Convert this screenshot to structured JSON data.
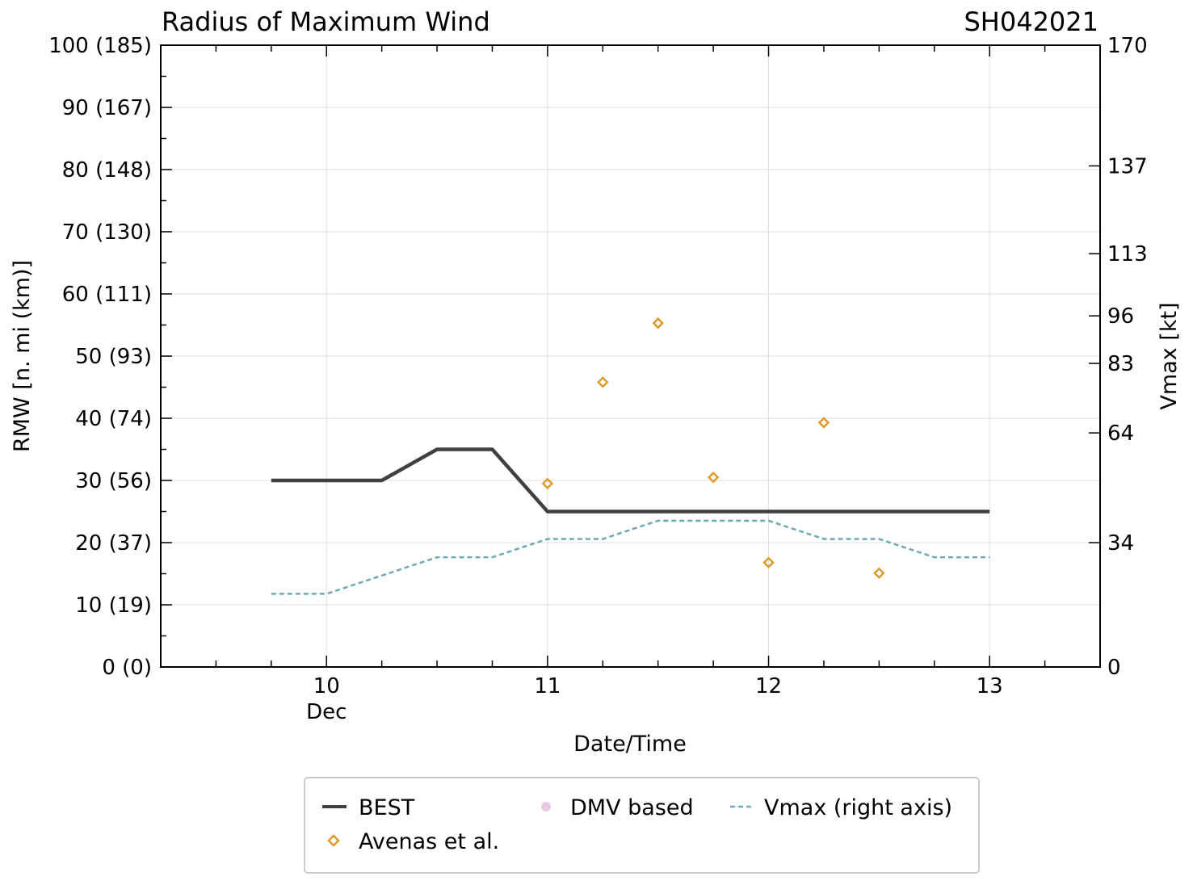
{
  "chart_data": {
    "type": "line",
    "title": "Radius of Maximum Wind",
    "storm_id": "SH042021",
    "xlabel": "Date/Time",
    "ylabel": "RMW [n. mi (km)]",
    "ylabel_right": "Vmax [kt]",
    "xlim": [
      9.25,
      13.5
    ],
    "ylim": [
      0,
      100
    ],
    "ylim_right": [
      0,
      170
    ],
    "x_ticks": [
      {
        "value": 10,
        "label": "10",
        "sublabel": "Dec"
      },
      {
        "value": 11,
        "label": "11",
        "sublabel": ""
      },
      {
        "value": 12,
        "label": "12",
        "sublabel": ""
      },
      {
        "value": 13,
        "label": "13",
        "sublabel": ""
      }
    ],
    "y_ticks": [
      {
        "value": 0,
        "label": "0 (0)"
      },
      {
        "value": 10,
        "label": "10 (19)"
      },
      {
        "value": 20,
        "label": "20 (37)"
      },
      {
        "value": 30,
        "label": "30 (56)"
      },
      {
        "value": 40,
        "label": "40 (74)"
      },
      {
        "value": 50,
        "label": "50 (93)"
      },
      {
        "value": 60,
        "label": "60 (111)"
      },
      {
        "value": 70,
        "label": "70 (130)"
      },
      {
        "value": 80,
        "label": "80 (148)"
      },
      {
        "value": 90,
        "label": "90 (167)"
      },
      {
        "value": 100,
        "label": "100 (185)"
      }
    ],
    "y_right_ticks": [
      {
        "value": 0,
        "label": "0"
      },
      {
        "value": 34,
        "label": "34"
      },
      {
        "value": 64,
        "label": "64"
      },
      {
        "value": 83,
        "label": "83"
      },
      {
        "value": 96,
        "label": "96"
      },
      {
        "value": 113,
        "label": "113"
      },
      {
        "value": 137,
        "label": "137"
      },
      {
        "value": 170,
        "label": "170"
      }
    ],
    "series": [
      {
        "name": "BEST",
        "kind": "line",
        "color": "#404040",
        "x": [
          9.75,
          10.0,
          10.25,
          10.5,
          10.75,
          11.0,
          11.25,
          11.5,
          11.75,
          12.0,
          12.25,
          12.5,
          12.75,
          13.0
        ],
        "y": [
          30,
          30,
          30,
          35,
          35,
          25,
          25,
          25,
          25,
          25,
          25,
          25,
          25,
          25
        ]
      },
      {
        "name": "Avenas et al.",
        "kind": "scatter",
        "marker": "diamond",
        "color": "#e09a2a",
        "x": [
          11.0,
          11.25,
          11.5,
          11.75,
          12.0,
          12.25,
          12.5
        ],
        "y": [
          29.5,
          45.8,
          55.3,
          30.5,
          16.8,
          39.3,
          15.1
        ]
      },
      {
        "name": "DMV based",
        "kind": "scatter",
        "marker": "circle",
        "color": "#e6c9e6",
        "x": [],
        "y": []
      },
      {
        "name": "Vmax (right axis)",
        "kind": "line",
        "style": "dashed",
        "axis": "right",
        "color": "#6fa9b5",
        "x": [
          9.75,
          10.0,
          10.25,
          10.5,
          10.75,
          11.0,
          11.25,
          11.5,
          11.75,
          12.0,
          12.25,
          12.5,
          12.75,
          13.0
        ],
        "y": [
          20,
          20,
          25,
          30,
          30,
          35,
          35,
          40,
          40,
          40,
          35,
          35,
          30,
          30
        ]
      }
    ],
    "grid": true,
    "legend_position": "bottom-center"
  }
}
